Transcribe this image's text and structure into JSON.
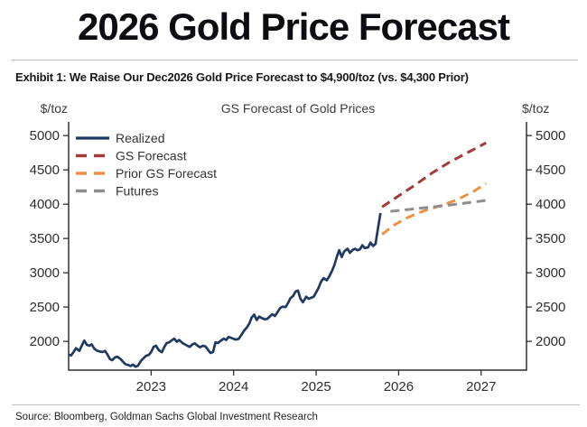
{
  "page": {
    "title": "2026 Gold Price Forecast"
  },
  "exhibit": {
    "title": "Exhibit 1: We Raise Our Dec2026 Gold Price Forecast to $4,900/toz (vs. $4,300 Prior)"
  },
  "source": {
    "text": "Source: Bloomberg, Goldman Sachs Global Investment Research"
  },
  "colors": {
    "realized": "#1e3a63",
    "gs_forecast": "#a43a3a",
    "prior_gs_forecast": "#ee9140",
    "futures": "#8e8e8e",
    "axis": "#2f2f2f",
    "tick_text": "#2e2e2e"
  },
  "chart_data": {
    "type": "line",
    "title": "GS Forecast of Gold Prices",
    "ylabel": "$/toz",
    "ylabel_left": "$/toz",
    "ylabel_right": "$/toz",
    "xlabel": "",
    "grid": false,
    "legend_position": "top-left",
    "xlim": [
      2022.0,
      2027.55
    ],
    "ylim": [
      1580,
      5200
    ],
    "x_ticks": [
      2023,
      2024,
      2025,
      2026,
      2027
    ],
    "y_ticks": [
      2000,
      2500,
      3000,
      3500,
      4000,
      4500,
      5000
    ],
    "series": [
      {
        "name": "Realized",
        "color": "#1e3a63",
        "style": "solid",
        "points": [
          [
            2022.0,
            1805
          ],
          [
            2022.03,
            1795
          ],
          [
            2022.06,
            1845
          ],
          [
            2022.09,
            1900
          ],
          [
            2022.13,
            1860
          ],
          [
            2022.16,
            1940
          ],
          [
            2022.19,
            2010
          ],
          [
            2022.22,
            1950
          ],
          [
            2022.25,
            1935
          ],
          [
            2022.28,
            1955
          ],
          [
            2022.31,
            1895
          ],
          [
            2022.34,
            1865
          ],
          [
            2022.38,
            1850
          ],
          [
            2022.41,
            1845
          ],
          [
            2022.44,
            1860
          ],
          [
            2022.47,
            1810
          ],
          [
            2022.5,
            1740
          ],
          [
            2022.53,
            1725
          ],
          [
            2022.56,
            1765
          ],
          [
            2022.59,
            1775
          ],
          [
            2022.63,
            1740
          ],
          [
            2022.66,
            1700
          ],
          [
            2022.69,
            1665
          ],
          [
            2022.72,
            1655
          ],
          [
            2022.75,
            1640
          ],
          [
            2022.78,
            1660
          ],
          [
            2022.81,
            1630
          ],
          [
            2022.84,
            1645
          ],
          [
            2022.88,
            1720
          ],
          [
            2022.91,
            1755
          ],
          [
            2022.94,
            1790
          ],
          [
            2022.97,
            1800
          ],
          [
            2023.0,
            1845
          ],
          [
            2023.03,
            1920
          ],
          [
            2023.06,
            1935
          ],
          [
            2023.09,
            1875
          ],
          [
            2023.13,
            1840
          ],
          [
            2023.16,
            1920
          ],
          [
            2023.19,
            1975
          ],
          [
            2023.22,
            1985
          ],
          [
            2023.25,
            2015
          ],
          [
            2023.28,
            2040
          ],
          [
            2023.31,
            1995
          ],
          [
            2023.34,
            2020
          ],
          [
            2023.38,
            1975
          ],
          [
            2023.41,
            1955
          ],
          [
            2023.44,
            1935
          ],
          [
            2023.47,
            1920
          ],
          [
            2023.5,
            1955
          ],
          [
            2023.53,
            1970
          ],
          [
            2023.56,
            1940
          ],
          [
            2023.59,
            1915
          ],
          [
            2023.63,
            1935
          ],
          [
            2023.66,
            1925
          ],
          [
            2023.69,
            1875
          ],
          [
            2023.72,
            1830
          ],
          [
            2023.75,
            1845
          ],
          [
            2023.78,
            1985
          ],
          [
            2023.81,
            1975
          ],
          [
            2023.84,
            2005
          ],
          [
            2023.88,
            2040
          ],
          [
            2023.91,
            2020
          ],
          [
            2023.94,
            2065
          ],
          [
            2023.97,
            2050
          ],
          [
            2024.0,
            2035
          ],
          [
            2024.03,
            2025
          ],
          [
            2024.06,
            2035
          ],
          [
            2024.09,
            2085
          ],
          [
            2024.13,
            2160
          ],
          [
            2024.16,
            2200
          ],
          [
            2024.19,
            2260
          ],
          [
            2024.22,
            2350
          ],
          [
            2024.25,
            2390
          ],
          [
            2024.28,
            2310
          ],
          [
            2024.31,
            2360
          ],
          [
            2024.34,
            2340
          ],
          [
            2024.38,
            2320
          ],
          [
            2024.41,
            2330
          ],
          [
            2024.44,
            2365
          ],
          [
            2024.47,
            2395
          ],
          [
            2024.5,
            2370
          ],
          [
            2024.53,
            2420
          ],
          [
            2024.56,
            2480
          ],
          [
            2024.59,
            2505
          ],
          [
            2024.63,
            2500
          ],
          [
            2024.66,
            2560
          ],
          [
            2024.69,
            2630
          ],
          [
            2024.72,
            2660
          ],
          [
            2024.75,
            2725
          ],
          [
            2024.78,
            2740
          ],
          [
            2024.81,
            2620
          ],
          [
            2024.84,
            2570
          ],
          [
            2024.88,
            2650
          ],
          [
            2024.91,
            2620
          ],
          [
            2024.94,
            2635
          ],
          [
            2024.97,
            2650
          ],
          [
            2025.0,
            2715
          ],
          [
            2025.03,
            2780
          ],
          [
            2025.06,
            2870
          ],
          [
            2025.09,
            2920
          ],
          [
            2025.13,
            2890
          ],
          [
            2025.16,
            2950
          ],
          [
            2025.19,
            3020
          ],
          [
            2025.22,
            3110
          ],
          [
            2025.25,
            3230
          ],
          [
            2025.28,
            3330
          ],
          [
            2025.31,
            3230
          ],
          [
            2025.34,
            3310
          ],
          [
            2025.38,
            3350
          ],
          [
            2025.41,
            3290
          ],
          [
            2025.44,
            3330
          ],
          [
            2025.47,
            3350
          ],
          [
            2025.5,
            3330
          ],
          [
            2025.53,
            3340
          ],
          [
            2025.56,
            3400
          ],
          [
            2025.59,
            3360
          ],
          [
            2025.63,
            3370
          ],
          [
            2025.66,
            3440
          ],
          [
            2025.69,
            3390
          ],
          [
            2025.72,
            3420
          ],
          [
            2025.75,
            3650
          ],
          [
            2025.78,
            3870
          ]
        ]
      },
      {
        "name": "GS Forecast",
        "color": "#a43a3a",
        "style": "dashed",
        "points": [
          [
            2025.8,
            3960
          ],
          [
            2026.0,
            4120
          ],
          [
            2026.2,
            4280
          ],
          [
            2026.4,
            4450
          ],
          [
            2026.6,
            4600
          ],
          [
            2026.8,
            4730
          ],
          [
            2027.0,
            4855
          ],
          [
            2027.06,
            4895
          ]
        ]
      },
      {
        "name": "Prior GS Forecast",
        "color": "#ee9140",
        "style": "dashed",
        "points": [
          [
            2025.8,
            3560
          ],
          [
            2025.95,
            3700
          ],
          [
            2026.1,
            3800
          ],
          [
            2026.3,
            3900
          ],
          [
            2026.5,
            3975
          ],
          [
            2026.7,
            4060
          ],
          [
            2026.9,
            4180
          ],
          [
            2027.06,
            4300
          ]
        ]
      },
      {
        "name": "Futures",
        "color": "#8e8e8e",
        "style": "dashed",
        "points": [
          [
            2025.9,
            3895
          ],
          [
            2026.1,
            3920
          ],
          [
            2026.3,
            3945
          ],
          [
            2026.5,
            3970
          ],
          [
            2026.7,
            4000
          ],
          [
            2026.9,
            4030
          ],
          [
            2027.06,
            4055
          ]
        ]
      }
    ]
  }
}
